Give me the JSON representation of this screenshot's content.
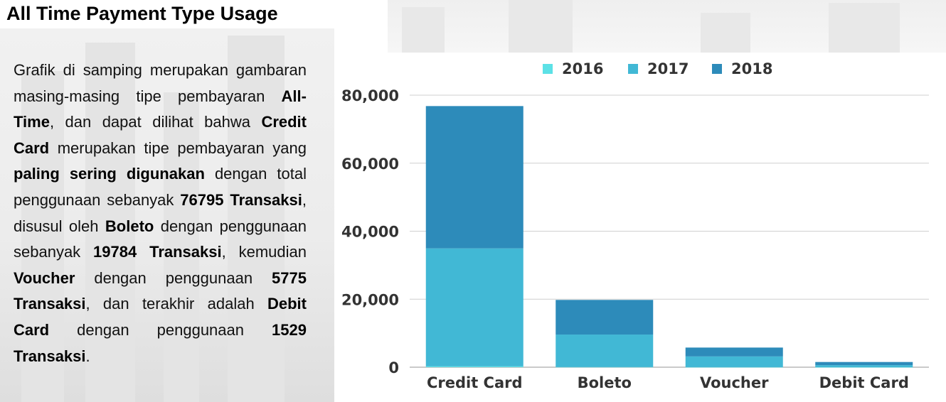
{
  "header": {
    "title": "All Time Payment Type Usage"
  },
  "description": [
    {
      "text": "Grafik di samping merupakan gambaran masing-masing tipe pembayaran ",
      "bold": false
    },
    {
      "text": "All-Time",
      "bold": true
    },
    {
      "text": ", dan dapat dilihat bahwa ",
      "bold": false
    },
    {
      "text": "Credit Card",
      "bold": true
    },
    {
      "text": " merupakan tipe pembayaran yang ",
      "bold": false
    },
    {
      "text": "paling sering digunakan",
      "bold": true
    },
    {
      "text": " dengan total penggunaan sebanyak ",
      "bold": false
    },
    {
      "text": "76795 Transaksi",
      "bold": true
    },
    {
      "text": ", disusul oleh ",
      "bold": false
    },
    {
      "text": "Boleto",
      "bold": true
    },
    {
      "text": " dengan penggunaan sebanyak ",
      "bold": false
    },
    {
      "text": "19784 Transaksi",
      "bold": true
    },
    {
      "text": ", kemudian ",
      "bold": false
    },
    {
      "text": "Voucher",
      "bold": true
    },
    {
      "text": " dengan penggunaan ",
      "bold": false
    },
    {
      "text": "5775 Transaksi",
      "bold": true
    },
    {
      "text": ", dan terakhir adalah ",
      "bold": false
    },
    {
      "text": "Debit Card",
      "bold": true
    },
    {
      "text": " dengan penggunaan ",
      "bold": false
    },
    {
      "text": "1529 Transaksi",
      "bold": true
    },
    {
      "text": ".",
      "bold": false
    }
  ],
  "chart_data": {
    "type": "bar",
    "stacked": true,
    "title": "",
    "xlabel": "",
    "ylabel": "",
    "categories": [
      "Credit Card",
      "Boleto",
      "Voucher",
      "Debit Card"
    ],
    "series": [
      {
        "name": "2016",
        "color": "#5ce1e6",
        "values": [
          250,
          50,
          20,
          5
        ]
      },
      {
        "name": "2017",
        "color": "#41b8d5",
        "values": [
          34700,
          9550,
          3150,
          600
        ]
      },
      {
        "name": "2018",
        "color": "#2d8bba",
        "values": [
          41845,
          10184,
          2605,
          924
        ]
      }
    ],
    "yticks": [
      0,
      20000,
      40000,
      60000,
      80000
    ],
    "ytick_labels": [
      "0",
      "20,000",
      "40,000",
      "60,000",
      "80,000"
    ],
    "ylim": [
      0,
      80000
    ],
    "grid": true,
    "legend_position": "top"
  }
}
